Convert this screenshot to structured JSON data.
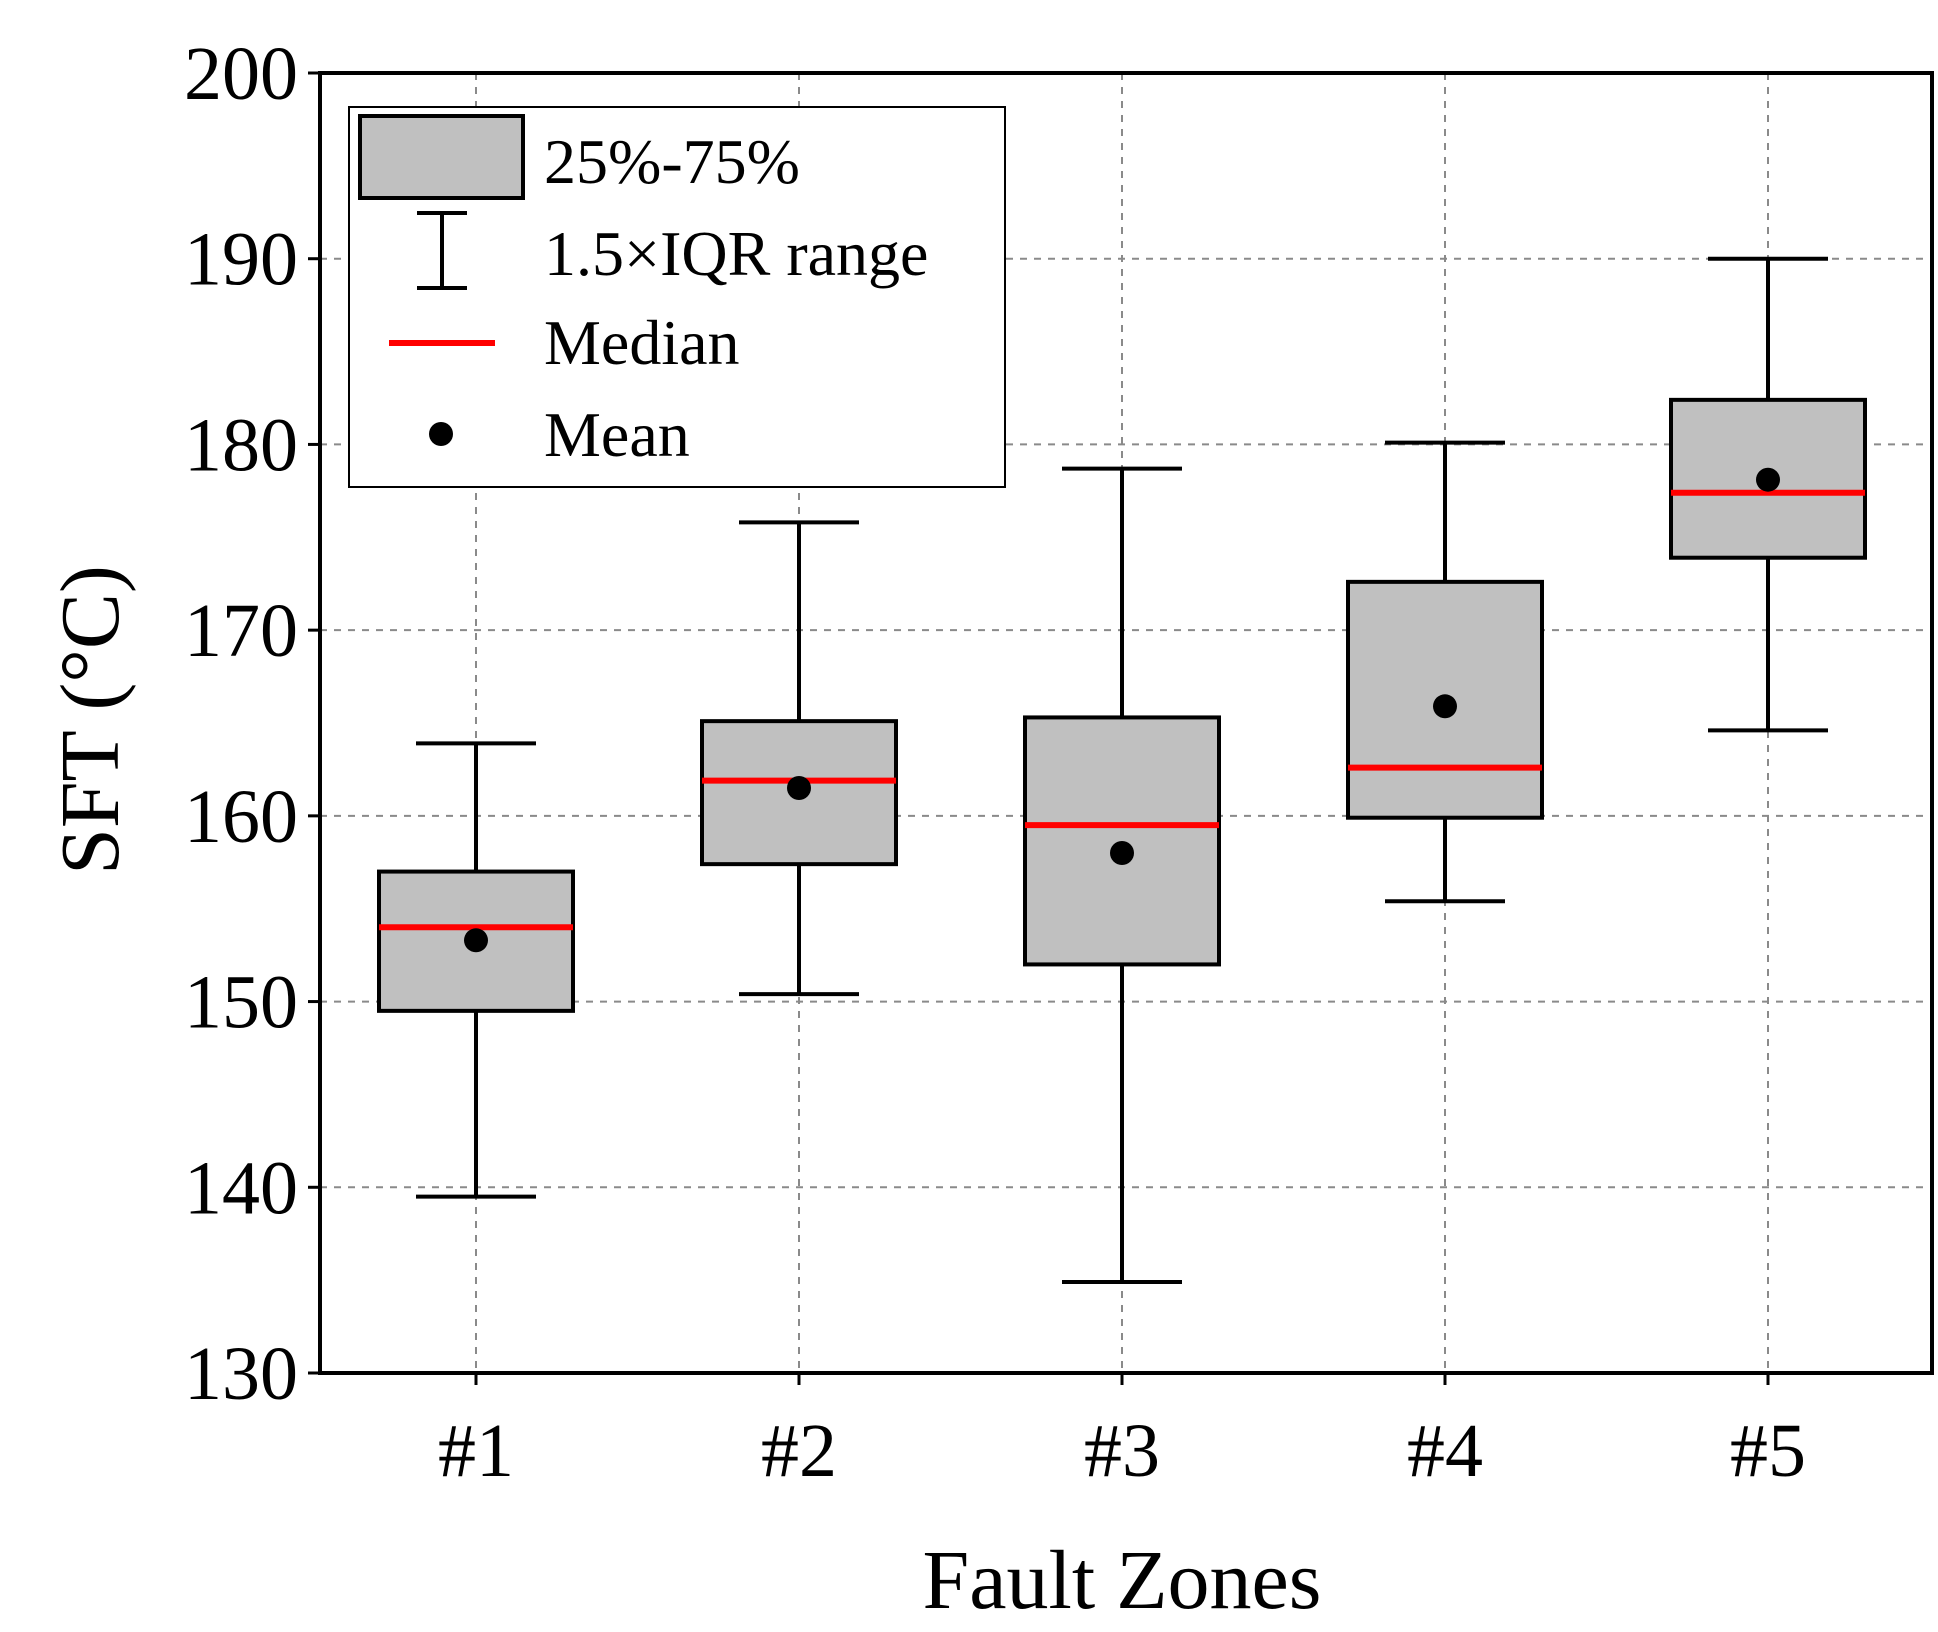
{
  "chart_data": {
    "type": "box",
    "xlabel": "Fault Zones",
    "ylabel": "SFT (°C)",
    "ylim": [
      130,
      200
    ],
    "yticks": [
      130,
      140,
      150,
      160,
      170,
      180,
      190,
      200
    ],
    "grid": true,
    "categories": [
      "#1",
      "#2",
      "#3",
      "#4",
      "#5"
    ],
    "boxes": [
      {
        "category": "#1",
        "whisker_low": 139.5,
        "q1": 149.5,
        "median": 154.0,
        "q3": 157.0,
        "whisker_high": 163.9,
        "mean": 153.3
      },
      {
        "category": "#2",
        "whisker_low": 150.4,
        "q1": 157.4,
        "median": 161.9,
        "q3": 165.1,
        "whisker_high": 175.8,
        "mean": 161.5
      },
      {
        "category": "#3",
        "whisker_low": 134.9,
        "q1": 152.0,
        "median": 159.5,
        "q3": 165.3,
        "whisker_high": 178.7,
        "mean": 158.0
      },
      {
        "category": "#4",
        "whisker_low": 155.4,
        "q1": 159.9,
        "median": 162.6,
        "q3": 172.6,
        "whisker_high": 180.1,
        "mean": 165.9
      },
      {
        "category": "#5",
        "whisker_low": 164.6,
        "q1": 173.9,
        "median": 177.4,
        "q3": 182.4,
        "whisker_high": 190.0,
        "mean": 178.1
      }
    ],
    "legend": {
      "position": "top-left",
      "entries": [
        {
          "symbol": "box",
          "label": "25%-75%"
        },
        {
          "symbol": "whisker",
          "label": "1.5×IQR range"
        },
        {
          "symbol": "median-line",
          "label": "Median"
        },
        {
          "symbol": "mean-dot",
          "label": "Mean"
        }
      ]
    },
    "colors": {
      "box_fill": "#c0c0c0",
      "median": "#ff0000",
      "mean": "#000000",
      "grid": "#8a8a8a"
    }
  }
}
